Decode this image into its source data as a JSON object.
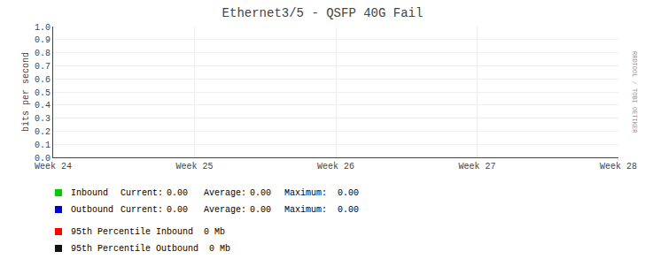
{
  "chart_data": {
    "type": "line",
    "title": "Ethernet3/5 - QSFP 40G Fail",
    "y_label": "bits per second",
    "categories": [
      "Week 24",
      "Week 25",
      "Week 26",
      "Week 27",
      "Week 28"
    ],
    "series": [
      {
        "name": "Inbound",
        "color": "#00cc00",
        "values": [
          null,
          null,
          null,
          null,
          null
        ],
        "stats": [
          "Current:",
          "0.00",
          "Average:",
          "0.00",
          "Maximum:",
          "0.00"
        ]
      },
      {
        "name": "Outbound",
        "color": "#0000cc",
        "values": [
          null,
          null,
          null,
          null,
          null
        ],
        "stats": [
          "Current:",
          "0.00",
          "Average:",
          "0.00",
          "Maximum:",
          "0.00"
        ]
      },
      {
        "name": "95th Percentile Inbound  0 Mb",
        "color": "#ff0000",
        "values": [
          null,
          null,
          null,
          null,
          null
        ]
      },
      {
        "name": "95th Percentile Outbound  0 Mb",
        "color": "#111111",
        "values": [
          null,
          null,
          null,
          null,
          null
        ]
      }
    ],
    "ylim": [
      0.0,
      1.0
    ],
    "yticks": [
      {
        "value": 0,
        "label": "0.0"
      },
      0.1,
      0.2,
      0.3,
      0.4,
      0.5,
      0.6,
      0.7,
      0.8,
      0.9,
      {
        "value": 1,
        "label": "1.0"
      }
    ],
    "annotations": [
      "RRDTOOL / TOBI OETIKER"
    ],
    "grid": true
  }
}
